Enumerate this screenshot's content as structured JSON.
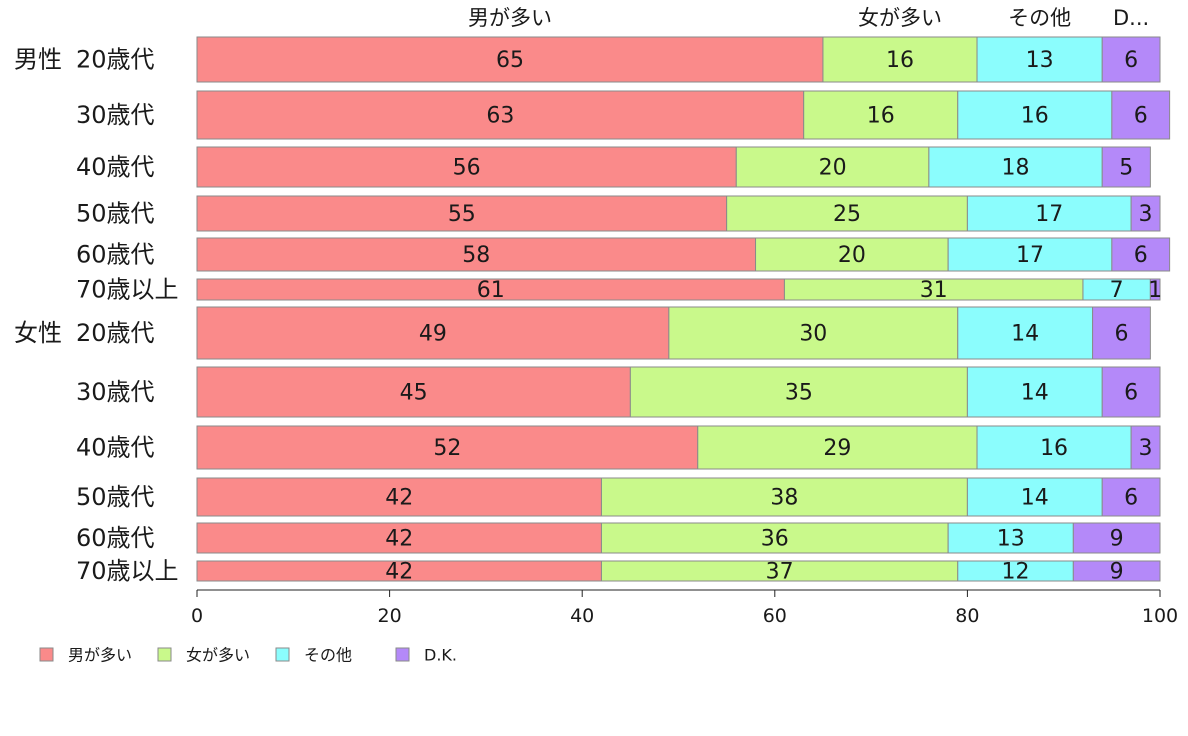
{
  "chart_data": {
    "type": "bar",
    "orientation": "horizontal",
    "stacked": true,
    "top_labels": [
      "男が多い",
      "女が多い",
      "その他",
      "D..."
    ],
    "rows": [
      {
        "group": "男性",
        "label": "20歳代",
        "values": [
          65,
          16,
          13,
          6
        ]
      },
      {
        "group": "",
        "label": "30歳代",
        "values": [
          63,
          16,
          16,
          6
        ]
      },
      {
        "group": "",
        "label": "40歳代",
        "values": [
          56,
          20,
          18,
          5
        ]
      },
      {
        "group": "",
        "label": "50歳代",
        "values": [
          55,
          25,
          17,
          3
        ]
      },
      {
        "group": "",
        "label": "60歳代",
        "values": [
          58,
          20,
          17,
          6
        ]
      },
      {
        "group": "",
        "label": "70歳以上",
        "values": [
          61,
          31,
          7,
          1
        ]
      },
      {
        "group": "女性",
        "label": "20歳代",
        "values": [
          49,
          30,
          14,
          6
        ]
      },
      {
        "group": "",
        "label": "30歳代",
        "values": [
          45,
          35,
          14,
          6
        ]
      },
      {
        "group": "",
        "label": "40歳代",
        "values": [
          52,
          29,
          16,
          3
        ]
      },
      {
        "group": "",
        "label": "50歳代",
        "values": [
          42,
          38,
          14,
          6
        ]
      },
      {
        "group": "",
        "label": "60歳代",
        "values": [
          42,
          36,
          13,
          9
        ]
      },
      {
        "group": "",
        "label": "70歳以上",
        "values": [
          42,
          37,
          12,
          9
        ]
      }
    ],
    "series": [
      {
        "name": "男が多い",
        "color": "#fa8a8a"
      },
      {
        "name": "女が多い",
        "color": "#c9f98b"
      },
      {
        "name": "その他",
        "color": "#8bfdfd"
      },
      {
        "name": "D.K.",
        "color": "#b489f9"
      }
    ],
    "xlim": [
      0,
      100
    ],
    "xticks": [
      0,
      20,
      40,
      60,
      80,
      100
    ],
    "legend_position": "bottom-left",
    "grid": false
  }
}
